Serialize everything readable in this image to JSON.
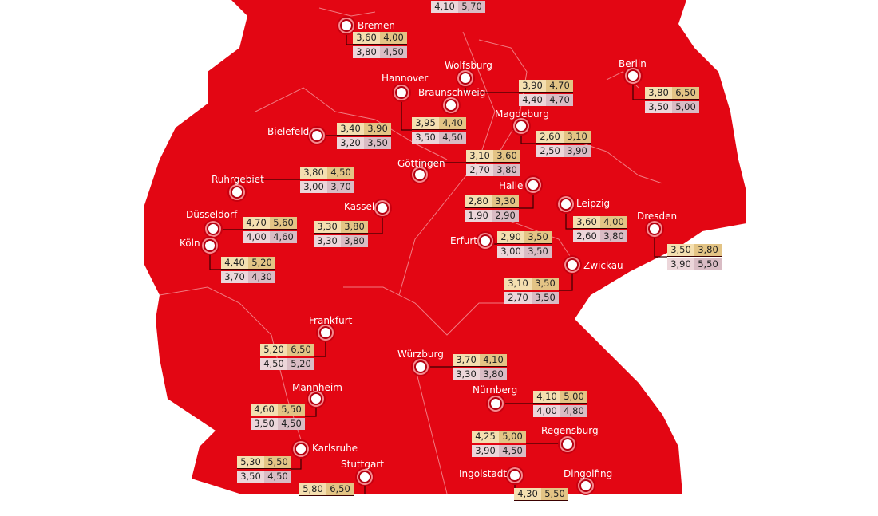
{
  "colors": {
    "land": "#e30613",
    "background": "#ffffff",
    "border": "#f07a80",
    "price_top_light": "#f4dfb0",
    "price_top_dark": "#e3c485",
    "price_bottom_light": "#ecd6da",
    "price_bottom_dark": "#d9bcc4"
  },
  "cities": [
    {
      "name": "",
      "top": [
        "",
        ""
      ],
      "bottom": [
        "4,10",
        "5,70"
      ]
    },
    {
      "name": "Bremen",
      "top": [
        "3,60",
        "4,00"
      ],
      "bottom": [
        "3,80",
        "4,50"
      ]
    },
    {
      "name": "Wolfsburg",
      "top": [
        "3,90",
        "4,70"
      ],
      "bottom": [
        "4,40",
        "4,70"
      ]
    },
    {
      "name": "Braunschweig",
      "top": null,
      "bottom": null
    },
    {
      "name": "Hannover",
      "top": [
        "3,95",
        "4,40"
      ],
      "bottom": [
        "3,50",
        "4,50"
      ]
    },
    {
      "name": "Berlin",
      "top": [
        "3,80",
        "6,50"
      ],
      "bottom": [
        "3,50",
        "5,00"
      ]
    },
    {
      "name": "Magdeburg",
      "top": [
        "2,60",
        "3,10"
      ],
      "bottom": [
        "2,50",
        "3,90"
      ]
    },
    {
      "name": "Bielefeld",
      "top": [
        "3,40",
        "3,90"
      ],
      "bottom": [
        "3,20",
        "3,50"
      ]
    },
    {
      "name": "Göttingen",
      "top": [
        "3,10",
        "3,60"
      ],
      "bottom": [
        "2,70",
        "3,80"
      ]
    },
    {
      "name": "Ruhrgebiet",
      "top": [
        "3,80",
        "4,50"
      ],
      "bottom": [
        "3,00",
        "3,70"
      ]
    },
    {
      "name": "Halle",
      "top": [
        "2,80",
        "3,30"
      ],
      "bottom": [
        "1,90",
        "2,90"
      ]
    },
    {
      "name": "Kassel",
      "top": [
        "3,30",
        "3,80"
      ],
      "bottom": [
        "3,30",
        "3,80"
      ]
    },
    {
      "name": "Leipzig",
      "top": [
        "3,60",
        "4,00"
      ],
      "bottom": [
        "2,60",
        "3,80"
      ]
    },
    {
      "name": "Dresden",
      "top": [
        "3,50",
        "3,80"
      ],
      "bottom": [
        "3,90",
        "5,50"
      ]
    },
    {
      "name": "Düsseldorf",
      "top": [
        "4,70",
        "5,60"
      ],
      "bottom": [
        "4,00",
        "4,60"
      ]
    },
    {
      "name": "Erfurt",
      "top": [
        "2,90",
        "3,50"
      ],
      "bottom": [
        "3,00",
        "3,50"
      ]
    },
    {
      "name": "Köln",
      "top": [
        "4,40",
        "5,20"
      ],
      "bottom": [
        "3,70",
        "4,30"
      ]
    },
    {
      "name": "Zwickau",
      "top": [
        "3,10",
        "3,50"
      ],
      "bottom": [
        "2,70",
        "3,50"
      ]
    },
    {
      "name": "Frankfurt",
      "top": [
        "5,20",
        "6,50"
      ],
      "bottom": [
        "4,50",
        "5,20"
      ]
    },
    {
      "name": "Würzburg",
      "top": [
        "3,70",
        "4,10"
      ],
      "bottom": [
        "3,30",
        "3,80"
      ]
    },
    {
      "name": "Nürnberg",
      "top": [
        "4,10",
        "5,00"
      ],
      "bottom": [
        "4,00",
        "4,80"
      ]
    },
    {
      "name": "Mannheim",
      "top": [
        "4,60",
        "5,50"
      ],
      "bottom": [
        "3,50",
        "4,50"
      ]
    },
    {
      "name": "Regensburg",
      "top": [
        "4,25",
        "5,00"
      ],
      "bottom": [
        "3,90",
        "4,50"
      ]
    },
    {
      "name": "Karlsruhe",
      "top": [
        "5,30",
        "5,50"
      ],
      "bottom": [
        "3,50",
        "4,50"
      ]
    },
    {
      "name": "Stuttgart",
      "top": [
        "5,80",
        "6,50"
      ],
      "bottom": null
    },
    {
      "name": "Ingolstadt",
      "top": [
        "4,30",
        "5,50"
      ],
      "bottom": null
    },
    {
      "name": "Dingolfing",
      "top": null,
      "bottom": null
    }
  ]
}
